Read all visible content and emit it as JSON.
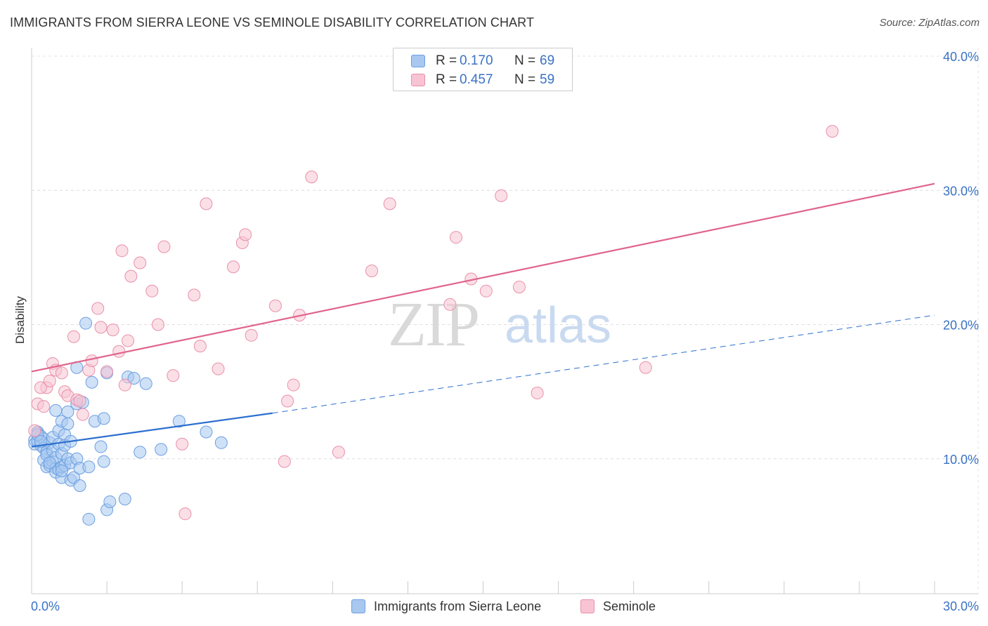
{
  "title": "IMMIGRANTS FROM SIERRA LEONE VS SEMINOLE DISABILITY CORRELATION CHART",
  "source": "Source: ZipAtlas.com",
  "watermark": {
    "zip": "ZIP",
    "atlas": "atlas"
  },
  "stats": [
    {
      "r_label": "R =",
      "r_value": "0.170",
      "n_label": "N =",
      "n_value": "69",
      "color": "#a8c8f0",
      "border": "#6c9fe0"
    },
    {
      "r_label": "R =",
      "r_value": "0.457",
      "n_label": "N =",
      "n_value": "59",
      "color": "#f8c4d4",
      "border": "#e890aa"
    }
  ],
  "legend": [
    {
      "label": "Immigrants from Sierra Leone",
      "color": "#a8c8f0",
      "border": "#6c9fe0"
    },
    {
      "label": "Seminole",
      "color": "#f8c4d4",
      "border": "#e890aa"
    }
  ],
  "chart_data": {
    "type": "scatter",
    "title": "IMMIGRANTS FROM SIERRA LEONE VS SEMINOLE DISABILITY CORRELATION CHART",
    "xlabel": "",
    "ylabel": "Disability",
    "xlim": [
      0,
      30
    ],
    "ylim": [
      0,
      40
    ],
    "x_tick_labels": [
      "0.0%",
      "30.0%"
    ],
    "y_ticks": [
      10,
      20,
      30,
      40
    ],
    "y_tick_labels": [
      "10.0%",
      "20.0%",
      "30.0%",
      "40.0%"
    ],
    "grid": true,
    "legend_position": "bottom",
    "series": [
      {
        "name": "Immigrants from Sierra Leone",
        "color": "#6c9fe0",
        "fill": "#a8c8f0",
        "trend": {
          "x0": 0,
          "y0": 10.9,
          "x1": 8,
          "y1": 13.4,
          "dash_x1": 30,
          "dash_y1": 20.7,
          "color": "#2c6fcf"
        },
        "points": [
          [
            0.1,
            11.4
          ],
          [
            0.1,
            11.1
          ],
          [
            0.2,
            11.9
          ],
          [
            0.2,
            11.3
          ],
          [
            0.2,
            12.0
          ],
          [
            0.3,
            11.7
          ],
          [
            0.3,
            11.0
          ],
          [
            0.4,
            11.5
          ],
          [
            0.4,
            10.8
          ],
          [
            0.4,
            9.9
          ],
          [
            0.5,
            10.5
          ],
          [
            0.5,
            9.4
          ],
          [
            0.5,
            10.3
          ],
          [
            0.6,
            11.2
          ],
          [
            0.6,
            9.5
          ],
          [
            0.7,
            9.8
          ],
          [
            0.7,
            10.6
          ],
          [
            0.7,
            11.6
          ],
          [
            0.8,
            9.3
          ],
          [
            0.8,
            10.1
          ],
          [
            0.8,
            9.0
          ],
          [
            0.8,
            13.6
          ],
          [
            0.9,
            11.1
          ],
          [
            0.9,
            12.1
          ],
          [
            0.9,
            9.2
          ],
          [
            1.0,
            8.6
          ],
          [
            1.0,
            10.4
          ],
          [
            1.0,
            12.8
          ],
          [
            1.0,
            9.4
          ],
          [
            1.1,
            11.8
          ],
          [
            1.1,
            9.5
          ],
          [
            1.1,
            11.0
          ],
          [
            1.2,
            12.6
          ],
          [
            1.2,
            13.5
          ],
          [
            1.2,
            10.0
          ],
          [
            1.3,
            11.3
          ],
          [
            1.3,
            8.4
          ],
          [
            1.3,
            9.7
          ],
          [
            1.4,
            8.6
          ],
          [
            1.5,
            16.8
          ],
          [
            1.5,
            10.0
          ],
          [
            1.5,
            14.1
          ],
          [
            1.6,
            8.0
          ],
          [
            1.6,
            9.3
          ],
          [
            1.7,
            14.2
          ],
          [
            1.8,
            20.1
          ],
          [
            1.9,
            9.4
          ],
          [
            1.9,
            5.5
          ],
          [
            2.0,
            15.7
          ],
          [
            2.1,
            12.8
          ],
          [
            2.3,
            10.9
          ],
          [
            2.4,
            13.0
          ],
          [
            2.4,
            9.8
          ],
          [
            2.5,
            6.2
          ],
          [
            2.5,
            16.4
          ],
          [
            2.6,
            6.8
          ],
          [
            3.1,
            7.0
          ],
          [
            3.2,
            16.1
          ],
          [
            3.4,
            16.0
          ],
          [
            3.6,
            10.5
          ],
          [
            3.8,
            15.6
          ],
          [
            4.3,
            10.7
          ],
          [
            4.9,
            12.8
          ],
          [
            5.8,
            12.0
          ],
          [
            6.3,
            11.2
          ],
          [
            0.2,
            11.8
          ],
          [
            0.3,
            11.3
          ],
          [
            0.6,
            9.7
          ],
          [
            1.0,
            9.1
          ]
        ]
      },
      {
        "name": "Seminole",
        "color": "#e890aa",
        "fill": "#f8c4d4",
        "trend": {
          "x0": 0,
          "y0": 16.5,
          "x1": 30,
          "y1": 30.5,
          "color": "#e0648c"
        },
        "points": [
          [
            0.1,
            12.1
          ],
          [
            0.2,
            14.1
          ],
          [
            0.4,
            13.9
          ],
          [
            0.5,
            15.3
          ],
          [
            0.6,
            15.8
          ],
          [
            0.7,
            17.1
          ],
          [
            0.8,
            16.6
          ],
          [
            1.0,
            16.4
          ],
          [
            1.1,
            15.0
          ],
          [
            1.2,
            14.7
          ],
          [
            1.4,
            19.1
          ],
          [
            1.5,
            14.4
          ],
          [
            1.6,
            14.3
          ],
          [
            1.7,
            13.3
          ],
          [
            1.9,
            16.6
          ],
          [
            2.0,
            17.3
          ],
          [
            2.2,
            21.2
          ],
          [
            2.3,
            19.8
          ],
          [
            2.5,
            16.5
          ],
          [
            2.7,
            19.6
          ],
          [
            2.9,
            18.0
          ],
          [
            3.0,
            25.5
          ],
          [
            3.1,
            15.5
          ],
          [
            3.2,
            18.8
          ],
          [
            3.3,
            23.6
          ],
          [
            3.6,
            24.6
          ],
          [
            4.0,
            22.5
          ],
          [
            4.2,
            20.0
          ],
          [
            4.4,
            25.8
          ],
          [
            4.7,
            16.2
          ],
          [
            5.0,
            11.1
          ],
          [
            5.1,
            5.9
          ],
          [
            5.4,
            22.2
          ],
          [
            5.6,
            18.4
          ],
          [
            5.8,
            29.0
          ],
          [
            6.2,
            16.7
          ],
          [
            6.7,
            24.3
          ],
          [
            7.0,
            26.1
          ],
          [
            7.1,
            26.7
          ],
          [
            7.3,
            19.2
          ],
          [
            8.1,
            21.4
          ],
          [
            8.4,
            9.8
          ],
          [
            8.5,
            14.3
          ],
          [
            8.7,
            15.5
          ],
          [
            8.9,
            20.7
          ],
          [
            9.3,
            31.0
          ],
          [
            10.2,
            10.5
          ],
          [
            11.3,
            24.0
          ],
          [
            11.9,
            29.0
          ],
          [
            13.9,
            21.5
          ],
          [
            14.1,
            26.5
          ],
          [
            14.6,
            23.4
          ],
          [
            15.1,
            22.5
          ],
          [
            15.6,
            29.6
          ],
          [
            16.2,
            22.8
          ],
          [
            16.8,
            14.9
          ],
          [
            20.4,
            16.8
          ],
          [
            26.6,
            34.4
          ],
          [
            0.3,
            15.3
          ]
        ]
      }
    ]
  }
}
